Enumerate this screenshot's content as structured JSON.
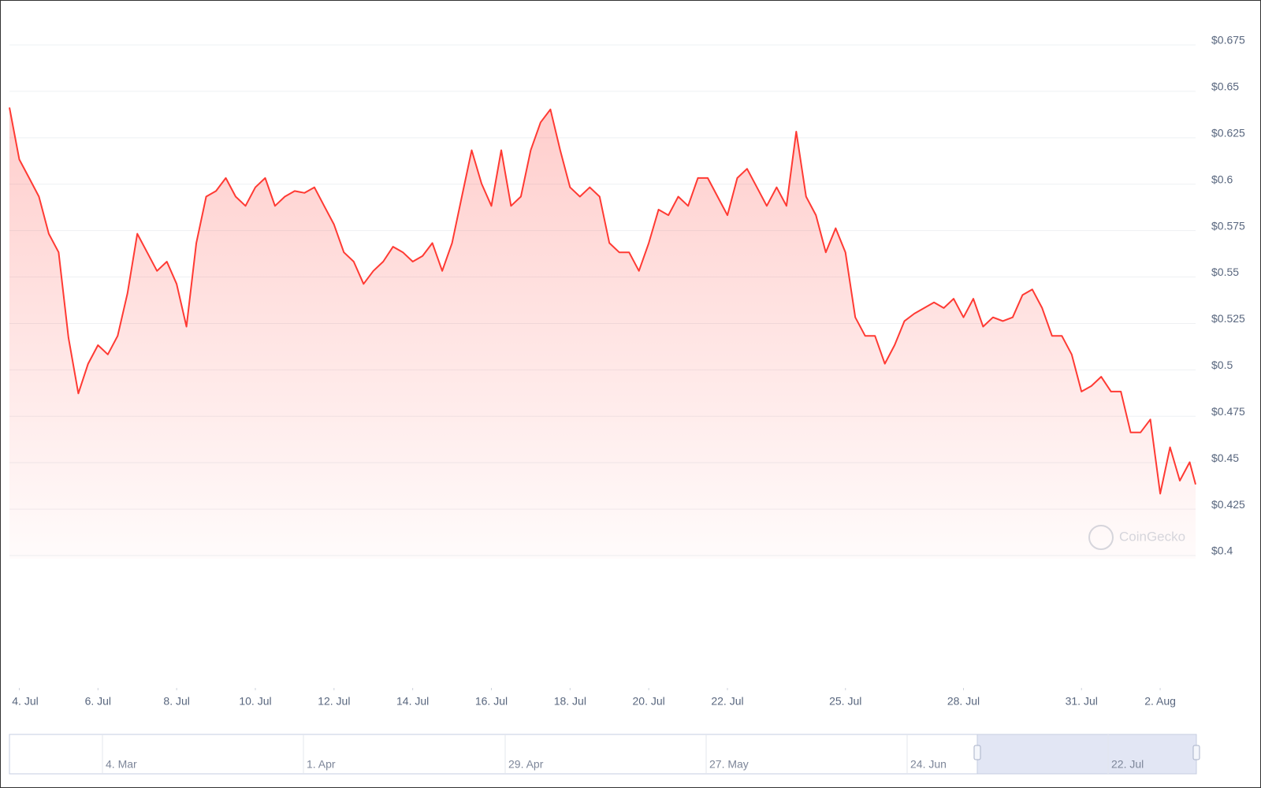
{
  "chart_data": {
    "type": "area",
    "color": "#ff3a33",
    "grid": true,
    "x": [
      -0.25,
      0,
      0.25,
      0.5,
      0.75,
      1,
      1.25,
      1.5,
      1.75,
      2,
      2.25,
      2.5,
      2.75,
      3,
      3.25,
      3.5,
      3.75,
      4,
      4.25,
      4.5,
      4.75,
      5,
      5.25,
      5.5,
      5.75,
      6,
      6.25,
      6.5,
      6.75,
      7,
      7.25,
      7.5,
      7.75,
      8,
      8.25,
      8.5,
      8.75,
      9,
      9.25,
      9.5,
      9.75,
      10,
      10.25,
      10.5,
      10.75,
      11,
      11.25,
      11.5,
      11.75,
      12,
      12.25,
      12.5,
      12.75,
      13,
      13.25,
      13.5,
      13.75,
      14,
      14.25,
      14.5,
      14.75,
      15,
      15.25,
      15.5,
      15.75,
      16,
      16.25,
      16.5,
      16.75,
      17,
      17.25,
      17.5,
      17.75,
      18,
      18.25,
      18.5,
      18.75,
      19,
      19.25,
      19.5,
      19.75,
      20,
      20.25,
      20.5,
      20.75,
      21,
      21.25,
      21.5,
      21.75,
      22,
      22.25,
      22.5,
      22.75,
      23,
      23.25,
      23.5,
      23.75,
      24,
      24.25,
      24.5,
      24.75,
      25,
      25.25,
      25.5,
      25.75,
      26,
      26.25,
      26.5,
      26.75,
      27,
      27.25,
      27.5,
      27.75,
      28,
      28.25,
      28.5,
      28.75,
      29,
      29.25,
      29.5,
      29.75,
      29.9
    ],
    "values": [
      0.643,
      0.615,
      0.605,
      0.595,
      0.575,
      0.565,
      0.519,
      0.489,
      0.505,
      0.515,
      0.51,
      0.52,
      0.543,
      0.575,
      0.565,
      0.555,
      0.56,
      0.548,
      0.525,
      0.57,
      0.595,
      0.598,
      0.605,
      0.595,
      0.59,
      0.6,
      0.605,
      0.59,
      0.595,
      0.598,
      0.597,
      0.6,
      0.59,
      0.58,
      0.565,
      0.56,
      0.548,
      0.555,
      0.56,
      0.568,
      0.565,
      0.56,
      0.563,
      0.57,
      0.555,
      0.57,
      0.595,
      0.62,
      0.602,
      0.59,
      0.62,
      0.59,
      0.595,
      0.62,
      0.635,
      0.642,
      0.62,
      0.6,
      0.595,
      0.6,
      0.595,
      0.57,
      0.565,
      0.565,
      0.555,
      0.57,
      0.588,
      0.585,
      0.595,
      0.59,
      0.605,
      0.605,
      0.595,
      0.585,
      0.605,
      0.61,
      0.6,
      0.59,
      0.6,
      0.59,
      0.63,
      0.595,
      0.585,
      0.565,
      0.578,
      0.565,
      0.53,
      0.52,
      0.52,
      0.505,
      0.515,
      0.528,
      0.532,
      0.535,
      0.538,
      0.535,
      0.54,
      0.53,
      0.54,
      0.525,
      0.53,
      0.528,
      0.53,
      0.542,
      0.545,
      0.535,
      0.52,
      0.52,
      0.51,
      0.49,
      0.493,
      0.498,
      0.49,
      0.49,
      0.468,
      0.468,
      0.475,
      0.435,
      0.46,
      0.442,
      0.452,
      0.44
    ],
    "xlim": [
      -0.25,
      29.9
    ],
    "ylim": [
      0.4,
      0.675
    ],
    "yticks": [
      {
        "value": 0.4,
        "label": "$0.4"
      },
      {
        "value": 0.425,
        "label": "$0.425"
      },
      {
        "value": 0.45,
        "label": "$0.45"
      },
      {
        "value": 0.475,
        "label": "$0.475"
      },
      {
        "value": 0.5,
        "label": "$0.5"
      },
      {
        "value": 0.525,
        "label": "$0.525"
      },
      {
        "value": 0.55,
        "label": "$0.55"
      },
      {
        "value": 0.575,
        "label": "$0.575"
      },
      {
        "value": 0.6,
        "label": "$0.6"
      },
      {
        "value": 0.625,
        "label": "$0.625"
      },
      {
        "value": 0.65,
        "label": "$0.65"
      },
      {
        "value": 0.675,
        "label": "$0.675"
      }
    ],
    "xticks": [
      {
        "value": 0,
        "label": "4. Jul"
      },
      {
        "value": 2,
        "label": "6. Jul"
      },
      {
        "value": 4,
        "label": "8. Jul"
      },
      {
        "value": 6,
        "label": "10. Jul"
      },
      {
        "value": 8,
        "label": "12. Jul"
      },
      {
        "value": 10,
        "label": "14. Jul"
      },
      {
        "value": 12,
        "label": "16. Jul"
      },
      {
        "value": 14,
        "label": "18. Jul"
      },
      {
        "value": 16,
        "label": "20. Jul"
      },
      {
        "value": 18,
        "label": "22. Jul"
      },
      {
        "value": 21,
        "label": "25. Jul"
      },
      {
        "value": 24,
        "label": "28. Jul"
      },
      {
        "value": 27,
        "label": "31. Jul"
      },
      {
        "value": 29,
        "label": "2. Aug"
      }
    ],
    "watermark": "CoinGecko",
    "navigator_labels": [
      "4. Mar",
      "1. Apr",
      "29. Apr",
      "27. May",
      "24. Jun",
      "22. Jul"
    ]
  }
}
